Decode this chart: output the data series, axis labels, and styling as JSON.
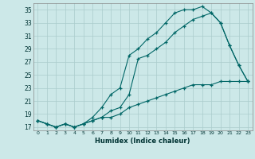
{
  "xlabel": "Humidex (Indice chaleur)",
  "bg_color": "#cce8e8",
  "grid_color": "#aacccc",
  "line_color": "#006666",
  "xlim": [
    -0.5,
    23.5
  ],
  "ylim": [
    16.5,
    36
  ],
  "yticks": [
    17,
    19,
    21,
    23,
    25,
    27,
    29,
    31,
    33,
    35
  ],
  "xticks": [
    0,
    1,
    2,
    3,
    4,
    5,
    6,
    7,
    8,
    9,
    10,
    11,
    12,
    13,
    14,
    15,
    16,
    17,
    18,
    19,
    20,
    21,
    22,
    23
  ],
  "line1_x": [
    0,
    1,
    2,
    3,
    4,
    5,
    6,
    7,
    8,
    9,
    10,
    11,
    12,
    13,
    14,
    15,
    16,
    17,
    18,
    19,
    20,
    21,
    22,
    23
  ],
  "line1_y": [
    18,
    17.5,
    17,
    17.5,
    17,
    17.5,
    18,
    18.5,
    18.5,
    19,
    20,
    20.5,
    21,
    21.5,
    22,
    22.5,
    23,
    23.5,
    23.5,
    23.5,
    24,
    24,
    24,
    24
  ],
  "line2_x": [
    0,
    1,
    2,
    3,
    4,
    5,
    6,
    7,
    8,
    9,
    10,
    11,
    12,
    13,
    14,
    15,
    16,
    17,
    18,
    19,
    20,
    21,
    22,
    23
  ],
  "line2_y": [
    18,
    17.5,
    17,
    17.5,
    17,
    17.5,
    18.5,
    20,
    22,
    23,
    28,
    29,
    30.5,
    31.5,
    33,
    34.5,
    35,
    35,
    35.5,
    34.5,
    33,
    29.5,
    26.5,
    24
  ],
  "line3_x": [
    0,
    1,
    2,
    3,
    4,
    5,
    6,
    7,
    8,
    9,
    10,
    11,
    12,
    13,
    14,
    15,
    16,
    17,
    18,
    19,
    20,
    21,
    22,
    23
  ],
  "line3_y": [
    18,
    17.5,
    17,
    17.5,
    17,
    17.5,
    18,
    18.5,
    19.5,
    20,
    22,
    27.5,
    28,
    29,
    30,
    31.5,
    32.5,
    33.5,
    34,
    34.5,
    33,
    29.5,
    26.5,
    24
  ]
}
